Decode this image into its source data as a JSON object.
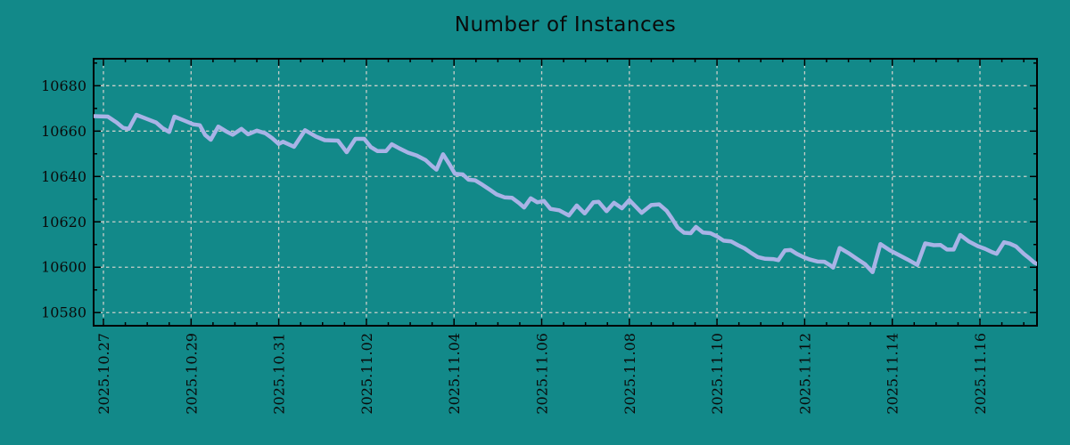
{
  "chart_data": {
    "type": "line",
    "title": "Number of Instances",
    "xlabel": "",
    "ylabel": "",
    "legend": "none",
    "grid": "dashed gray lines at major ticks, both axes",
    "bg_color": "#128989",
    "line_color": "#a9b3e6",
    "grid_color": "#c9cec9",
    "frame_color": "#000000",
    "text_color": "#0a0a0a",
    "x_tick_labels": [
      "2025.10.27",
      "2025.10.29",
      "2025.10.31",
      "2025.11.02",
      "2025.11.04",
      "2025.11.06",
      "2025.11.08",
      "2025.11.10",
      "2025.11.12",
      "2025.11.14",
      "2025.11.16"
    ],
    "x_tick_days": [
      0,
      2,
      4,
      6,
      8,
      10,
      12,
      14,
      16,
      18,
      20
    ],
    "x_minor_step_days": 0.5,
    "y_ticks": [
      10580,
      10600,
      10620,
      10640,
      10660,
      10680
    ],
    "y_minor_step": 10,
    "xlim_days": [
      -0.224,
      21.302
    ],
    "ylim": [
      10574.2,
      10691.9
    ],
    "x_unit": "days since 2025-10-27",
    "series": [
      {
        "name": "instances",
        "points": [
          [
            -0.23,
            10666.6
          ],
          [
            0.1,
            10666.4
          ],
          [
            0.3,
            10663.8
          ],
          [
            0.45,
            10661.4
          ],
          [
            0.58,
            10661.0
          ],
          [
            0.75,
            10667.2
          ],
          [
            1.0,
            10665.3
          ],
          [
            1.2,
            10663.8
          ],
          [
            1.35,
            10661.3
          ],
          [
            1.5,
            10659.6
          ],
          [
            1.62,
            10666.4
          ],
          [
            1.85,
            10664.6
          ],
          [
            2.05,
            10663.0
          ],
          [
            2.2,
            10662.6
          ],
          [
            2.32,
            10658.3
          ],
          [
            2.45,
            10656.2
          ],
          [
            2.62,
            10662.0
          ],
          [
            2.8,
            10659.9
          ],
          [
            2.95,
            10658.4
          ],
          [
            3.15,
            10661.0
          ],
          [
            3.3,
            10658.6
          ],
          [
            3.5,
            10660.2
          ],
          [
            3.7,
            10659.0
          ],
          [
            3.85,
            10656.9
          ],
          [
            4.0,
            10654.3
          ],
          [
            4.1,
            10655.3
          ],
          [
            4.35,
            10653.1
          ],
          [
            4.6,
            10660.4
          ],
          [
            4.85,
            10657.6
          ],
          [
            5.05,
            10656.0
          ],
          [
            5.35,
            10655.8
          ],
          [
            5.55,
            10650.7
          ],
          [
            5.75,
            10656.6
          ],
          [
            5.95,
            10656.6
          ],
          [
            6.1,
            10653.0
          ],
          [
            6.25,
            10651.2
          ],
          [
            6.45,
            10651.2
          ],
          [
            6.58,
            10654.2
          ],
          [
            6.75,
            10652.4
          ],
          [
            6.95,
            10650.5
          ],
          [
            7.15,
            10649.2
          ],
          [
            7.35,
            10647.2
          ],
          [
            7.5,
            10644.6
          ],
          [
            7.6,
            10643.0
          ],
          [
            7.75,
            10649.8
          ],
          [
            7.9,
            10645.2
          ],
          [
            8.02,
            10641.2
          ],
          [
            8.2,
            10640.9
          ],
          [
            8.33,
            10638.6
          ],
          [
            8.48,
            10638.3
          ],
          [
            8.65,
            10636.3
          ],
          [
            8.82,
            10634.1
          ],
          [
            8.97,
            10632.1
          ],
          [
            9.15,
            10630.8
          ],
          [
            9.32,
            10630.6
          ],
          [
            9.48,
            10628.3
          ],
          [
            9.6,
            10626.3
          ],
          [
            9.75,
            10630.4
          ],
          [
            9.9,
            10628.6
          ],
          [
            10.05,
            10629.2
          ],
          [
            10.2,
            10625.7
          ],
          [
            10.4,
            10625.1
          ],
          [
            10.62,
            10622.8
          ],
          [
            10.8,
            10627.2
          ],
          [
            10.98,
            10623.7
          ],
          [
            11.18,
            10628.6
          ],
          [
            11.3,
            10628.8
          ],
          [
            11.48,
            10624.7
          ],
          [
            11.65,
            10628.4
          ],
          [
            11.83,
            10626.0
          ],
          [
            12.0,
            10629.6
          ],
          [
            12.28,
            10624.0
          ],
          [
            12.5,
            10627.4
          ],
          [
            12.68,
            10627.7
          ],
          [
            12.85,
            10624.9
          ],
          [
            12.97,
            10621.5
          ],
          [
            13.1,
            10617.5
          ],
          [
            13.25,
            10615.2
          ],
          [
            13.4,
            10615.0
          ],
          [
            13.52,
            10617.8
          ],
          [
            13.68,
            10615.3
          ],
          [
            13.85,
            10615.0
          ],
          [
            14.0,
            10613.6
          ],
          [
            14.15,
            10611.7
          ],
          [
            14.32,
            10611.4
          ],
          [
            14.48,
            10609.7
          ],
          [
            14.63,
            10608.3
          ],
          [
            14.78,
            10606.3
          ],
          [
            14.93,
            10604.5
          ],
          [
            15.1,
            10603.7
          ],
          [
            15.28,
            10603.6
          ],
          [
            15.4,
            10603.1
          ],
          [
            15.55,
            10607.4
          ],
          [
            15.68,
            10607.6
          ],
          [
            15.82,
            10605.9
          ],
          [
            15.98,
            10604.4
          ],
          [
            16.12,
            10603.4
          ],
          [
            16.3,
            10602.5
          ],
          [
            16.45,
            10602.4
          ],
          [
            16.57,
            10601.0
          ],
          [
            16.65,
            10599.8
          ],
          [
            16.8,
            10608.5
          ],
          [
            17.0,
            10606.2
          ],
          [
            17.2,
            10603.6
          ],
          [
            17.38,
            10601.3
          ],
          [
            17.55,
            10597.8
          ],
          [
            17.73,
            10610.2
          ],
          [
            17.95,
            10607.4
          ],
          [
            18.15,
            10605.4
          ],
          [
            18.35,
            10603.4
          ],
          [
            18.57,
            10601.0
          ],
          [
            18.75,
            10610.5
          ],
          [
            18.95,
            10609.7
          ],
          [
            19.1,
            10609.8
          ],
          [
            19.25,
            10607.8
          ],
          [
            19.4,
            10607.8
          ],
          [
            19.55,
            10614.2
          ],
          [
            19.75,
            10611.3
          ],
          [
            19.95,
            10609.3
          ],
          [
            20.12,
            10608.1
          ],
          [
            20.28,
            10606.6
          ],
          [
            20.38,
            10605.9
          ],
          [
            20.55,
            10611.0
          ],
          [
            20.68,
            10610.4
          ],
          [
            20.82,
            10609.2
          ],
          [
            21.0,
            10605.9
          ],
          [
            21.13,
            10603.9
          ],
          [
            21.24,
            10602.0
          ],
          [
            21.4,
            10600.6
          ]
        ]
      }
    ]
  }
}
